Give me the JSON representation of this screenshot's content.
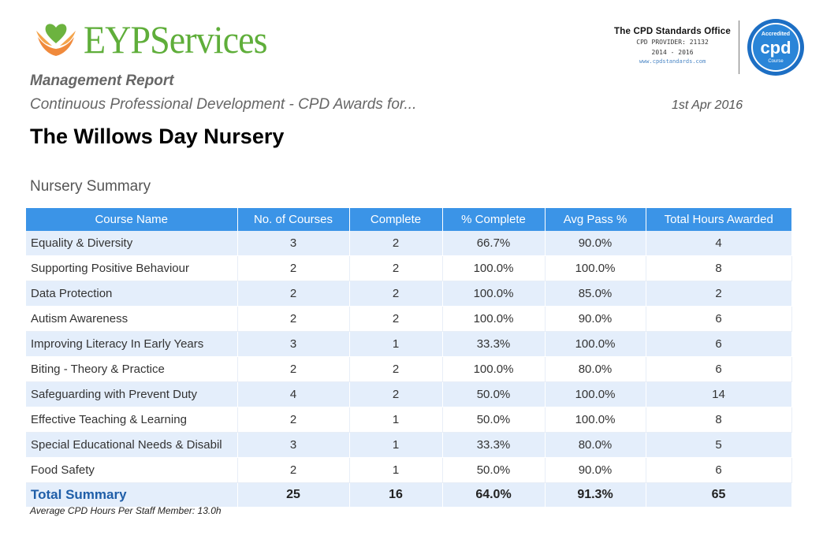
{
  "header": {
    "logo_text": "EYPServices",
    "cpd_office": "The CPD Standards Office",
    "cpd_provider": "CPD PROVIDER: 21132",
    "cpd_years": "2014 - 2016",
    "cpd_url": "www.cpdstandards.com",
    "badge_top": "Accredited",
    "badge_main": "cpd",
    "badge_bottom": "Course"
  },
  "report": {
    "type": "Management Report",
    "subtitle": "Continuous Professional Development - CPD Awards for...",
    "date": "1st Apr 2016",
    "nursery": "The Willows Day Nursery",
    "section": "Nursery Summary"
  },
  "table": {
    "headers": [
      "Course Name",
      "No. of Courses",
      "Complete",
      "% Complete",
      "Avg Pass %",
      "Total Hours Awarded"
    ],
    "rows": [
      [
        "Equality & Diversity",
        "3",
        "2",
        "66.7%",
        "90.0%",
        "4"
      ],
      [
        "Supporting Positive Behaviour",
        "2",
        "2",
        "100.0%",
        "100.0%",
        "8"
      ],
      [
        "Data Protection",
        "2",
        "2",
        "100.0%",
        "85.0%",
        "2"
      ],
      [
        "Autism Awareness",
        "2",
        "2",
        "100.0%",
        "90.0%",
        "6"
      ],
      [
        "Improving Literacy In Early Years",
        "3",
        "1",
        "33.3%",
        "100.0%",
        "6"
      ],
      [
        "Biting - Theory & Practice",
        "2",
        "2",
        "100.0%",
        "80.0%",
        "6"
      ],
      [
        "Safeguarding with Prevent Duty",
        "4",
        "2",
        "50.0%",
        "100.0%",
        "14"
      ],
      [
        "Effective Teaching & Learning",
        "2",
        "1",
        "50.0%",
        "100.0%",
        "8"
      ],
      [
        "Special Educational Needs & Disabil",
        "3",
        "1",
        "33.3%",
        "80.0%",
        "5"
      ],
      [
        "Food Safety",
        "2",
        "1",
        "50.0%",
        "90.0%",
        "6"
      ]
    ],
    "total": [
      "Total Summary",
      "25",
      "16",
      "64.0%",
      "91.3%",
      "65"
    ]
  },
  "footer": {
    "avg_hours": "Average CPD Hours Per Staff Member: 13.0h"
  },
  "colors": {
    "header_blue": "#3b94e7",
    "row_tint": "#e4eefb",
    "logo_green": "#5fae3a",
    "total_blue": "#1f5ea8"
  }
}
